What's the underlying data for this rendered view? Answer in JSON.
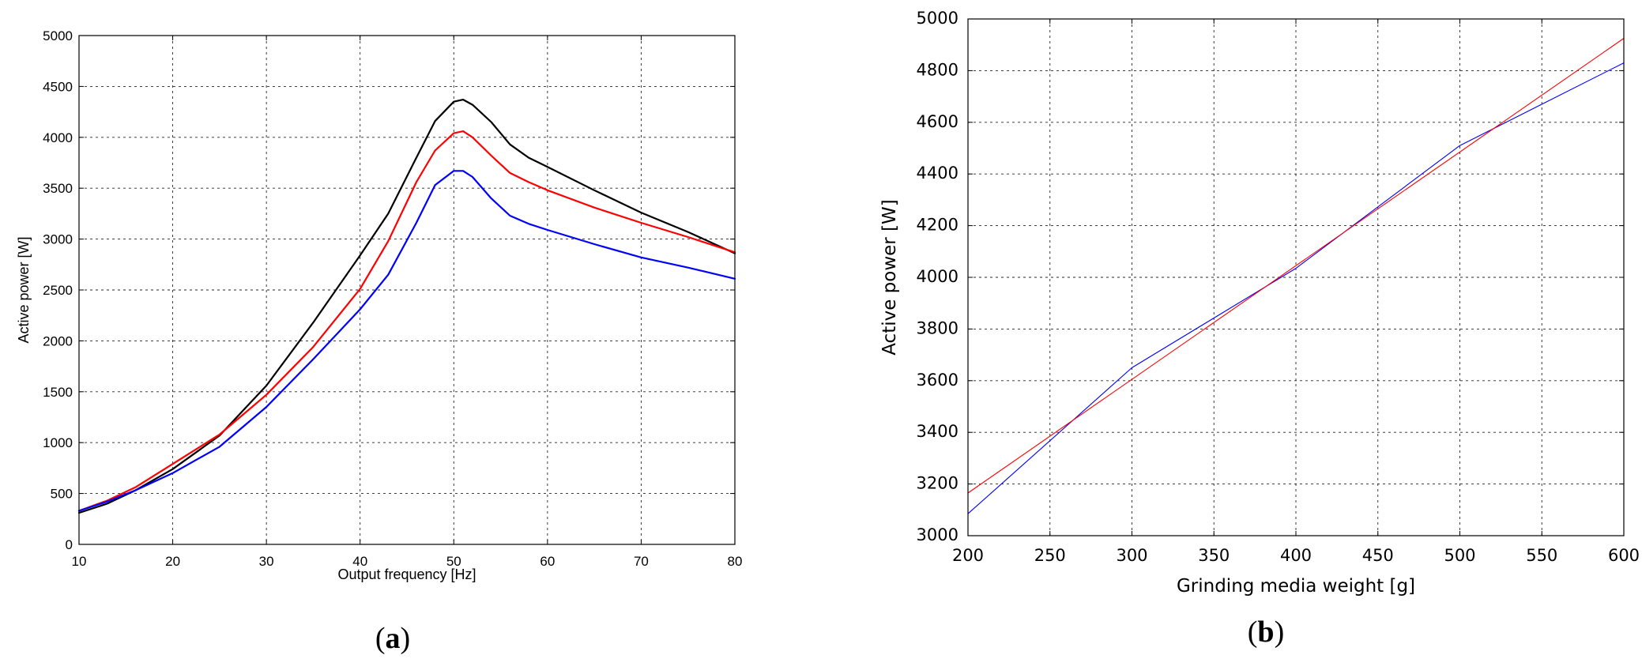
{
  "chart_data": [
    {
      "type": "line",
      "xlabel": "Output frequency [Hz]",
      "ylabel": "Active power [W]",
      "xlim": [
        10,
        80
      ],
      "ylim": [
        0,
        5000
      ],
      "xticks": [
        10,
        20,
        30,
        40,
        50,
        60,
        70,
        80
      ],
      "yticks": [
        0,
        500,
        1000,
        1500,
        2000,
        2500,
        3000,
        3500,
        4000,
        4500,
        5000
      ],
      "grid": true,
      "panel_label": "(a)",
      "series": [
        {
          "color": "#000000",
          "x": [
            10,
            13,
            16,
            20,
            25,
            30,
            35,
            40,
            43,
            46,
            48,
            50,
            51,
            52,
            54,
            56,
            58,
            60,
            65,
            70,
            75,
            80
          ],
          "values": [
            310,
            400,
            530,
            740,
            1070,
            1560,
            2180,
            2840,
            3250,
            3800,
            4160,
            4350,
            4370,
            4320,
            4150,
            3930,
            3800,
            3710,
            3480,
            3260,
            3070,
            2860
          ]
        },
        {
          "color": "#ff0000",
          "x": [
            10,
            13,
            16,
            20,
            25,
            30,
            35,
            40,
            43,
            46,
            48,
            50,
            51,
            52,
            54,
            56,
            58,
            60,
            65,
            70,
            75,
            80
          ],
          "values": [
            330,
            430,
            560,
            790,
            1080,
            1470,
            1940,
            2510,
            2980,
            3560,
            3870,
            4040,
            4060,
            4000,
            3820,
            3650,
            3560,
            3480,
            3310,
            3160,
            3020,
            2870
          ]
        },
        {
          "color": "#0000ff",
          "x": [
            10,
            13,
            16,
            20,
            25,
            30,
            35,
            40,
            43,
            46,
            48,
            50,
            51,
            52,
            54,
            56,
            58,
            60,
            65,
            70,
            75,
            80
          ],
          "values": [
            330,
            420,
            530,
            700,
            960,
            1350,
            1820,
            2310,
            2650,
            3160,
            3530,
            3670,
            3670,
            3610,
            3400,
            3230,
            3150,
            3090,
            2950,
            2820,
            2720,
            2610
          ]
        }
      ]
    },
    {
      "type": "line",
      "xlabel": "Grinding media weight [g]",
      "ylabel": "Active power [W]",
      "xlim": [
        200,
        600
      ],
      "ylim": [
        3000,
        5000
      ],
      "xticks": [
        200,
        250,
        300,
        350,
        400,
        450,
        500,
        550,
        600
      ],
      "yticks": [
        3000,
        3200,
        3400,
        3600,
        3800,
        4000,
        4200,
        4400,
        4600,
        4800,
        5000
      ],
      "grid": true,
      "panel_label": "(b)",
      "series": [
        {
          "color": "#0000ff",
          "x": [
            200,
            300,
            400,
            500,
            600
          ],
          "values": [
            3085,
            3650,
            4035,
            4510,
            4830
          ]
        },
        {
          "color": "#ff0000",
          "x": [
            200,
            600
          ],
          "values": [
            3165,
            4925
          ]
        }
      ]
    }
  ]
}
